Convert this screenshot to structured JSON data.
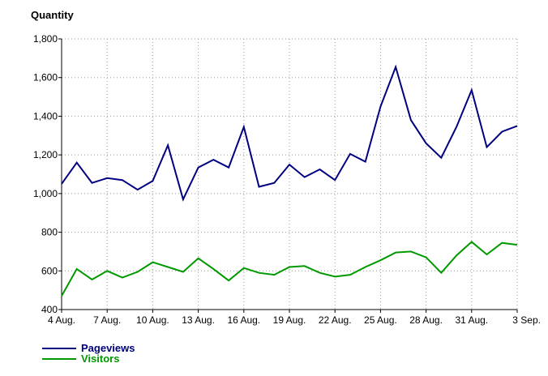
{
  "chart_data": {
    "type": "line",
    "title": "",
    "xlabel": "",
    "ylabel": "Quantity",
    "ylim": [
      400,
      1800
    ],
    "yticks": [
      400,
      600,
      800,
      1000,
      1200,
      1400,
      1600,
      1800
    ],
    "ytick_labels": [
      "400",
      "600",
      "800",
      "1,000",
      "1,200",
      "1,400",
      "1,600",
      "1,800"
    ],
    "xtick_labels": [
      "4 Aug.",
      "7 Aug.",
      "10 Aug.",
      "13 Aug.",
      "16 Aug.",
      "19 Aug.",
      "22 Aug.",
      "25 Aug.",
      "28 Aug.",
      "31 Aug.",
      "3 Sep."
    ],
    "xtick_indices": [
      0,
      3,
      6,
      9,
      12,
      15,
      18,
      21,
      24,
      27,
      30
    ],
    "x": [
      "4 Aug.",
      "5 Aug.",
      "6 Aug.",
      "7 Aug.",
      "8 Aug.",
      "9 Aug.",
      "10 Aug.",
      "11 Aug.",
      "12 Aug.",
      "13 Aug.",
      "14 Aug.",
      "15 Aug.",
      "16 Aug.",
      "17 Aug.",
      "18 Aug.",
      "19 Aug.",
      "20 Aug.",
      "21 Aug.",
      "22 Aug.",
      "23 Aug.",
      "24 Aug.",
      "25 Aug.",
      "26 Aug.",
      "27 Aug.",
      "28 Aug.",
      "29 Aug.",
      "30 Aug.",
      "31 Aug.",
      "1 Sep.",
      "2 Sep.",
      "3 Sep."
    ],
    "grid": true,
    "legend_position": "bottom-left",
    "series": [
      {
        "name": "Pageviews",
        "color": "#000080",
        "values": [
          1050,
          1160,
          1055,
          1080,
          1070,
          1020,
          1065,
          1250,
          970,
          1135,
          1175,
          1135,
          1345,
          1035,
          1055,
          1150,
          1085,
          1125,
          1070,
          1205,
          1165,
          1450,
          1655,
          1380,
          1260,
          1185,
          1345,
          1535,
          1240,
          1320,
          1350
        ]
      },
      {
        "name": "Visitors",
        "color": "#009900",
        "values": [
          470,
          610,
          555,
          600,
          565,
          595,
          645,
          620,
          595,
          665,
          610,
          550,
          615,
          590,
          580,
          620,
          625,
          590,
          570,
          580,
          620,
          655,
          695,
          700,
          670,
          590,
          680,
          750,
          685,
          745,
          735
        ]
      }
    ]
  }
}
